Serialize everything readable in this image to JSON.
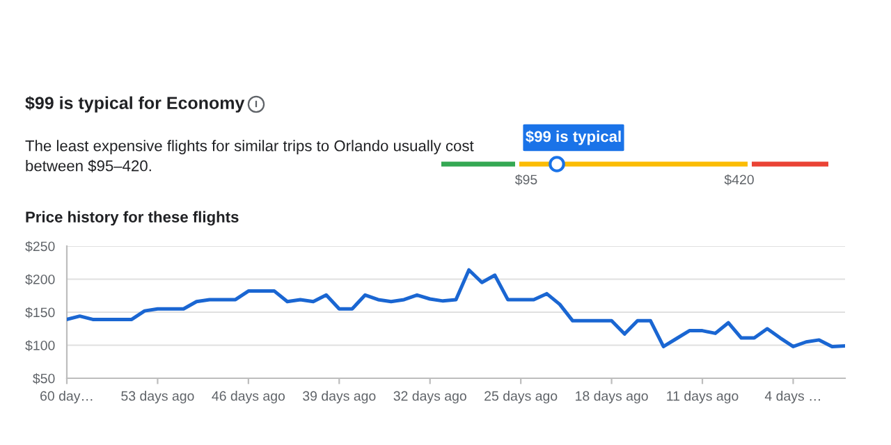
{
  "chart_data": [
    {
      "type": "other",
      "title": "$99 is typical for Economy",
      "subtitle": "The least expensive flights for similar trips to Orlando usually cost\nbetween $95–420.",
      "annotations": [
        "$99 is typical",
        "$95",
        "$420"
      ],
      "colors": [
        "#34a853",
        "#fbbc04",
        "#ea4335"
      ]
    },
    {
      "type": "line",
      "title": "Price history for these flights",
      "color": "#1a66d2",
      "x": [
        60,
        59,
        58,
        57,
        56,
        55,
        54,
        53,
        52,
        51,
        50,
        49,
        48,
        47,
        46,
        45,
        44,
        43,
        42,
        41,
        40,
        39,
        38,
        37,
        36,
        35,
        34,
        33,
        32,
        31,
        30,
        29,
        28,
        27,
        26,
        25,
        24,
        23,
        22,
        21,
        20,
        19,
        18,
        17,
        16,
        15,
        14,
        13,
        12,
        11,
        10,
        9,
        8,
        7,
        6,
        5,
        4,
        3,
        2,
        1,
        0
      ],
      "values": [
        139,
        144,
        139,
        139,
        139,
        139,
        152,
        155,
        155,
        155,
        166,
        169,
        169,
        169,
        182,
        182,
        182,
        166,
        169,
        166,
        176,
        155,
        155,
        176,
        169,
        166,
        169,
        176,
        170,
        167,
        169,
        214,
        195,
        206,
        169,
        169,
        169,
        178,
        162,
        137,
        137,
        137,
        137,
        117,
        137,
        137,
        98,
        110,
        122,
        122,
        118,
        134,
        111,
        111,
        125,
        111,
        98,
        105,
        108,
        98,
        99
      ],
      "xlim": [
        60,
        0
      ],
      "xticks": [
        {
          "value": 60,
          "label": "60 day…"
        },
        {
          "value": 53,
          "label": "53 days ago"
        },
        {
          "value": 46,
          "label": "46 days ago"
        },
        {
          "value": 39,
          "label": "39 days ago"
        },
        {
          "value": 32,
          "label": "32 days ago"
        },
        {
          "value": 25,
          "label": "25 days ago"
        },
        {
          "value": 18,
          "label": "18 days ago"
        },
        {
          "value": 11,
          "label": "11 days ago"
        },
        {
          "value": 4,
          "label": "4 days …"
        }
      ],
      "ylim": [
        50,
        250
      ],
      "yticks": [
        {
          "value": 50,
          "label": "$50"
        },
        {
          "value": 100,
          "label": "$100"
        },
        {
          "value": 150,
          "label": "$150"
        },
        {
          "value": 200,
          "label": "$200"
        },
        {
          "value": 250,
          "label": "$250"
        }
      ],
      "grid": "y",
      "marker": "none",
      "line_style": "solid"
    }
  ]
}
